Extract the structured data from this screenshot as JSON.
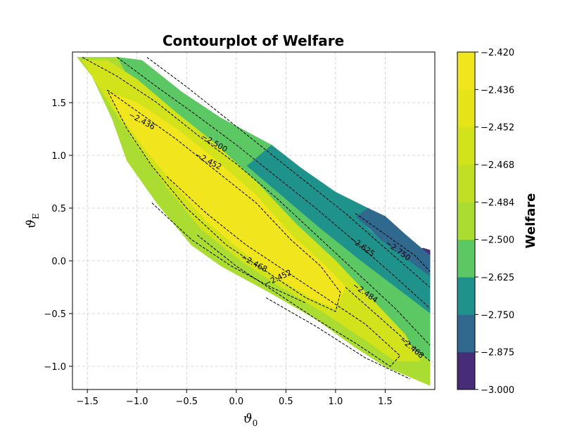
{
  "chart_data": {
    "type": "heatmap",
    "subtype": "filled-contour",
    "title": "Contourplot of Welfare",
    "xlabel": "ϑ",
    "xlabel_sub": "0",
    "ylabel": "ϑ",
    "ylabel_sub": "E",
    "xlim": [
      -1.65,
      2.0
    ],
    "ylim": [
      -1.22,
      1.98
    ],
    "x_ticks": [
      -1.5,
      -1.0,
      -0.5,
      0.0,
      0.5,
      1.0,
      1.5
    ],
    "x_tick_labels": [
      "−1.5",
      "−1.0",
      "−0.5",
      "0.0",
      "0.5",
      "1.0",
      "1.5"
    ],
    "y_ticks": [
      -1.0,
      -0.5,
      0.0,
      0.5,
      1.0,
      1.5
    ],
    "y_tick_labels": [
      "−1.0",
      "−0.5",
      "0.0",
      "0.5",
      "1.0",
      "1.5"
    ],
    "grid": true,
    "colorbar": {
      "label": "Welfare",
      "levels": [
        -3.0,
        -2.875,
        -2.75,
        -2.625,
        -2.5,
        -2.484,
        -2.468,
        -2.452,
        -2.436,
        -2.42
      ],
      "tick_labels": [
        "−3.000",
        "−2.875",
        "−2.750",
        "−2.625",
        "−2.500",
        "−2.484",
        "−2.468",
        "−2.452",
        "−2.436",
        "−2.420"
      ],
      "colors": [
        "#472c7a",
        "#31688e",
        "#20928c",
        "#5cc863",
        "#aadc32",
        "#c0df25",
        "#d2e21b",
        "#e5e419",
        "#f1e51d"
      ]
    },
    "contour_lines": [
      {
        "level": -2.436,
        "label": "−2.436",
        "label_pos": [
          -0.95,
          1.33
        ],
        "label_angle": 28
      },
      {
        "level": -2.452,
        "label": "−2.452",
        "label_pos": [
          -0.28,
          0.95
        ],
        "label_angle": 28
      },
      {
        "level": -2.5,
        "label": "−2.500",
        "label_pos": [
          -0.22,
          1.12
        ],
        "label_angle": 30
      },
      {
        "level": -2.468,
        "label": "−2.468",
        "label_pos": [
          0.18,
          -0.02
        ],
        "label_angle": 28
      },
      {
        "level": -2.452,
        "label": "−2.452",
        "label_pos": [
          0.42,
          -0.16
        ],
        "label_angle": -25
      },
      {
        "level": -2.484,
        "label": "−2.484",
        "label_pos": [
          1.3,
          -0.3
        ],
        "label_angle": 35
      },
      {
        "level": -2.625,
        "label": "−2.625",
        "label_pos": [
          1.27,
          0.14
        ],
        "label_angle": 36
      },
      {
        "level": -2.75,
        "label": "−2.750",
        "label_pos": [
          1.63,
          0.1
        ],
        "label_angle": 36
      },
      {
        "level": -2.468,
        "label": "−2.468",
        "label_pos": [
          1.77,
          -0.82
        ],
        "label_angle": 40
      }
    ]
  }
}
